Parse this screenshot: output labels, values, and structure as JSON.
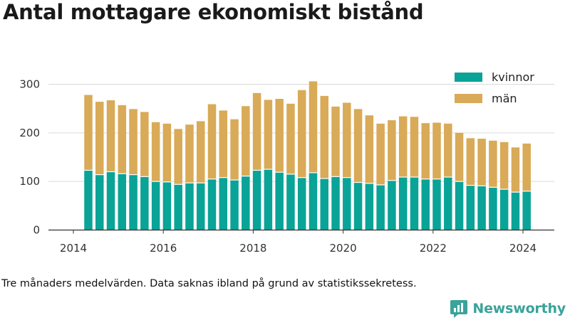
{
  "title": "Antal mottagare ekonomiskt bistånd",
  "note": "Tre månaders medelvärden. Data saknas ibland på grund av statistikssekretess.",
  "brand": {
    "name": "Newsworthy",
    "color": "#3aa39a"
  },
  "colors": {
    "kvinnor": "#0aa397",
    "man": "#d9aa57"
  },
  "chart_data": {
    "type": "bar",
    "stacked": true,
    "title": "Antal mottagare ekonomiskt bistånd",
    "xlabel": "",
    "ylabel": "",
    "ylim": [
      0,
      330
    ],
    "yticks": [
      0,
      100,
      200,
      300
    ],
    "xticks": [
      "2014",
      "2016",
      "2018",
      "2020",
      "2022",
      "2024"
    ],
    "grid": "horizontal",
    "legend": "top-right",
    "categories": [
      "2014-04",
      "2014-07",
      "2014-10",
      "2015-01",
      "2015-04",
      "2015-07",
      "2015-10",
      "2016-01",
      "2016-04",
      "2016-07",
      "2016-10",
      "2017-01",
      "2017-04",
      "2017-07",
      "2017-10",
      "2018-01",
      "2018-04",
      "2018-07",
      "2018-10",
      "2019-01",
      "2019-04",
      "2019-07",
      "2019-10",
      "2020-01",
      "2020-04",
      "2020-07",
      "2020-10",
      "2021-01",
      "2021-04",
      "2021-07",
      "2021-10",
      "2022-01",
      "2022-04",
      "2022-07",
      "2022-10",
      "2023-01",
      "2023-04",
      "2023-07",
      "2023-10",
      "2024-01"
    ],
    "series": [
      {
        "name": "kvinnor",
        "color": "#0aa397",
        "values": [
          123,
          114,
          120,
          116,
          114,
          110,
          100,
          99,
          94,
          97,
          97,
          105,
          108,
          103,
          111,
          123,
          125,
          119,
          115,
          108,
          118,
          106,
          110,
          108,
          98,
          96,
          93,
          102,
          109,
          109,
          105,
          105,
          109,
          100,
          92,
          91,
          88,
          84,
          78,
          80
        ]
      },
      {
        "name": "män",
        "color": "#d9aa57",
        "values": [
          155,
          150,
          147,
          141,
          135,
          133,
          122,
          120,
          114,
          120,
          127,
          154,
          138,
          125,
          144,
          159,
          143,
          151,
          145,
          180,
          188,
          170,
          144,
          154,
          151,
          140,
          126,
          124,
          125,
          124,
          115,
          116,
          110,
          100,
          97,
          97,
          96,
          97,
          92,
          98
        ]
      }
    ]
  }
}
